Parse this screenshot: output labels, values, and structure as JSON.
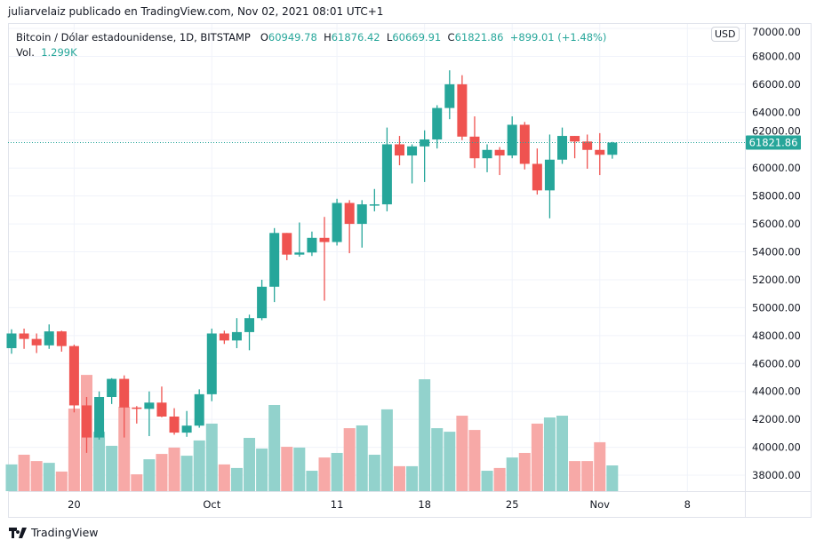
{
  "header": {
    "published": "juliarvelaiz publicado en TradingView.com, Nov 02, 2021 08:01 UTC+1"
  },
  "legend": {
    "symbol": "Bitcoin / Dólar estadounidense, 1D, BITSTAMP",
    "o_label": "O",
    "o": "60949.78",
    "h_label": "H",
    "h": "61876.42",
    "l_label": "L",
    "l": "60669.91",
    "c_label": "C",
    "c": "61821.86",
    "change": "+899.01 (+1.48%)",
    "vol_label": "Vol.",
    "vol": "1.299K"
  },
  "currency": "USD",
  "last_price_label": "61821.86",
  "brand": "TradingView",
  "colors": {
    "up": "#26a69a",
    "down": "#ef5350",
    "up_vol": "#92d2cc",
    "down_vol": "#f7a9a7",
    "grid": "#f0f3fa"
  },
  "chart_data": {
    "type": "candlestick",
    "interval": "1D",
    "ylim": [
      37000,
      70000
    ],
    "y_ticks": [
      "70000.00",
      "68000.00",
      "66000.00",
      "64000.00",
      "62000.00",
      "60000.00",
      "58000.00",
      "56000.00",
      "54000.00",
      "52000.00",
      "50000.00",
      "48000.00",
      "46000.00",
      "44000.00",
      "42000.00",
      "40000.00",
      "38000.00"
    ],
    "x_ticks": [
      {
        "label": "20",
        "date": "2021-09-20"
      },
      {
        "label": "Oct",
        "date": "2021-10-01"
      },
      {
        "label": "11",
        "date": "2021-10-11"
      },
      {
        "label": "18",
        "date": "2021-10-18"
      },
      {
        "label": "25",
        "date": "2021-10-25"
      },
      {
        "label": "Nov",
        "date": "2021-11-01"
      },
      {
        "label": "8",
        "date": "2021-11-08"
      }
    ],
    "x_start": "2021-09-15",
    "x_end_axis": "2021-11-12",
    "grid": true,
    "candles": [
      [
        "2021-09-15",
        47100,
        48450,
        46700,
        48150,
        1.35
      ],
      [
        "2021-09-16",
        48150,
        48500,
        47050,
        47760,
        1.84
      ],
      [
        "2021-09-17",
        47760,
        48150,
        46750,
        47300,
        1.52
      ],
      [
        "2021-09-18",
        47300,
        48800,
        47050,
        48300,
        1.43
      ],
      [
        "2021-09-19",
        48300,
        48350,
        46850,
        47250,
        0.99
      ],
      [
        "2021-09-20",
        47250,
        47350,
        42500,
        43000,
        4.17
      ],
      [
        "2021-09-21",
        43000,
        43600,
        39600,
        40700,
        5.87
      ],
      [
        "2021-09-22",
        40700,
        44000,
        40550,
        43600,
        3.0
      ],
      [
        "2021-09-23",
        43600,
        44950,
        43100,
        44900,
        2.29
      ],
      [
        "2021-09-24",
        44900,
        45150,
        40700,
        42850,
        4.26
      ],
      [
        "2021-09-25",
        42850,
        42950,
        41700,
        42750,
        0.85
      ],
      [
        "2021-09-26",
        42750,
        44000,
        40800,
        43200,
        1.61
      ],
      [
        "2021-09-27",
        43200,
        44350,
        42150,
        42200,
        1.88
      ],
      [
        "2021-09-28",
        42200,
        42800,
        40900,
        41050,
        2.2
      ],
      [
        "2021-09-29",
        41050,
        42600,
        40750,
        41550,
        1.79
      ],
      [
        "2021-09-30",
        41550,
        44150,
        41400,
        43800,
        2.56
      ],
      [
        "2021-10-01",
        43800,
        48500,
        43300,
        48150,
        3.41
      ],
      [
        "2021-10-02",
        48150,
        48350,
        47400,
        47650,
        1.35
      ],
      [
        "2021-10-03",
        47650,
        49250,
        47100,
        48250,
        1.17
      ],
      [
        "2021-10-04",
        48250,
        49500,
        46950,
        49250,
        2.69
      ],
      [
        "2021-10-05",
        49250,
        52000,
        49100,
        51500,
        2.15
      ],
      [
        "2021-10-06",
        51500,
        55700,
        50400,
        55350,
        4.35
      ],
      [
        "2021-10-07",
        55350,
        55350,
        53400,
        53800,
        2.24
      ],
      [
        "2021-10-08",
        53800,
        56100,
        53650,
        53950,
        2.2
      ],
      [
        "2021-10-09",
        53950,
        55450,
        53700,
        55000,
        1.03
      ],
      [
        "2021-10-10",
        55000,
        56500,
        50500,
        54700,
        1.7
      ],
      [
        "2021-10-11",
        54700,
        57800,
        54450,
        57500,
        1.93
      ],
      [
        "2021-10-12",
        57500,
        57700,
        53900,
        56000,
        3.18
      ],
      [
        "2021-10-13",
        56000,
        57700,
        54300,
        57400,
        3.32
      ],
      [
        "2021-10-14",
        57400,
        58500,
        56900,
        57400,
        1.84
      ],
      [
        "2021-10-15",
        57400,
        62900,
        56900,
        61700,
        4.13
      ],
      [
        "2021-10-16",
        61700,
        62300,
        60200,
        60900,
        1.26
      ],
      [
        "2021-10-17",
        60900,
        61700,
        58900,
        61550,
        1.26
      ],
      [
        "2021-10-18",
        61550,
        62700,
        59000,
        62050,
        5.65
      ],
      [
        "2021-10-19",
        62050,
        64500,
        61400,
        64300,
        3.18
      ],
      [
        "2021-10-20",
        64300,
        67000,
        63500,
        66000,
        3.0
      ],
      [
        "2021-10-21",
        66000,
        66650,
        62000,
        62250,
        3.81
      ],
      [
        "2021-10-22",
        62250,
        63700,
        60000,
        60700,
        3.09
      ],
      [
        "2021-10-23",
        60700,
        61700,
        59700,
        61300,
        1.03
      ],
      [
        "2021-10-24",
        61300,
        61500,
        59500,
        60900,
        1.17
      ],
      [
        "2021-10-25",
        60900,
        63700,
        60700,
        63100,
        1.7
      ],
      [
        "2021-10-26",
        63100,
        63300,
        59900,
        60300,
        1.93
      ],
      [
        "2021-10-27",
        60300,
        61400,
        58100,
        58400,
        3.41
      ],
      [
        "2021-10-28",
        58400,
        62400,
        56400,
        60600,
        3.72
      ],
      [
        "2021-10-29",
        60600,
        62900,
        60300,
        62300,
        3.81
      ],
      [
        "2021-10-30",
        62300,
        62300,
        60700,
        61900,
        1.52
      ],
      [
        "2021-10-31",
        61900,
        62400,
        59950,
        61300,
        1.52
      ],
      [
        "2021-11-01",
        61300,
        62500,
        59500,
        60950,
        2.47
      ],
      [
        "2021-11-02",
        60950,
        61876.42,
        60669.91,
        61821.86,
        1.299
      ]
    ],
    "candle_fields": [
      "date",
      "open",
      "high",
      "low",
      "close",
      "volume_k"
    ]
  }
}
